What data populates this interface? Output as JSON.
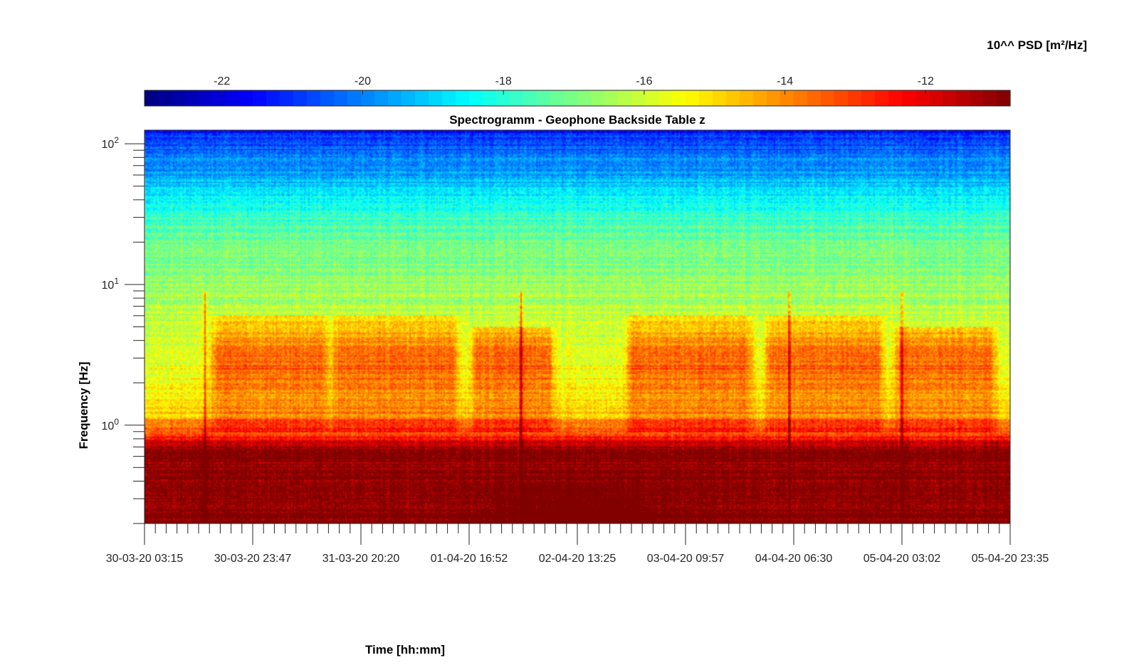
{
  "chart_data": {
    "type": "heatmap",
    "title": "Spectrogramm - Geophone Backside Table z",
    "xlabel": "Time [hh:mm]",
    "ylabel": "Frequency [Hz]",
    "yscale": "log",
    "ylim": [
      0.2,
      125
    ],
    "x_ticks": [
      "30-03-20 03:15",
      "30-03-20 23:47",
      "31-03-20 20:20",
      "01-04-20 16:52",
      "02-04-20 13:25",
      "03-04-20 09:57",
      "04-04-20 06:30",
      "05-04-20 03:02",
      "05-04-20 23:35"
    ],
    "y_ticks": [
      {
        "value": 1,
        "base": "10",
        "exp": "0"
      },
      {
        "value": 10,
        "base": "10",
        "exp": "1"
      },
      {
        "value": 100,
        "base": "10",
        "exp": "2"
      }
    ],
    "colorbar": {
      "label": "10^^ PSD [m²/Hz]",
      "range": [
        -23.1,
        -10.8
      ],
      "ticks": [
        -22,
        -20,
        -18,
        -16,
        -14,
        -12
      ],
      "tick_labels": [
        "-22",
        "-20",
        "-18",
        "-16",
        "-14",
        "-12"
      ],
      "colormap": "jet",
      "location": "top"
    },
    "features": {
      "daily_activity_bursts": [
        {
          "t_start": 0.07,
          "t_end": 0.22,
          "f_low": 0.9,
          "f_high": 6
        },
        {
          "t_start": 0.21,
          "t_end": 0.37,
          "f_low": 0.9,
          "f_high": 6
        },
        {
          "t_start": 0.37,
          "t_end": 0.48,
          "f_low": 0.9,
          "f_high": 5
        },
        {
          "t_start": 0.55,
          "t_end": 0.71,
          "f_low": 0.9,
          "f_high": 6
        },
        {
          "t_start": 0.71,
          "t_end": 0.86,
          "f_low": 0.9,
          "f_high": 6
        },
        {
          "t_start": 0.86,
          "t_end": 0.99,
          "f_low": 0.9,
          "f_high": 5
        }
      ],
      "transient_spikes": [
        0.07,
        0.435,
        0.745,
        0.875
      ]
    }
  }
}
